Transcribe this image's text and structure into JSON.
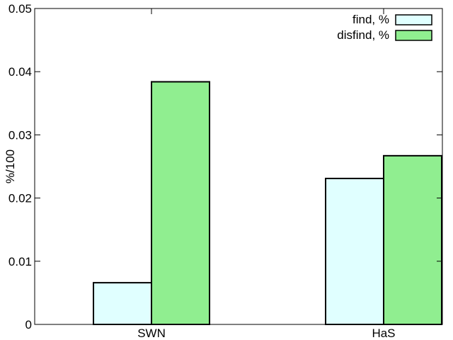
{
  "chart_data": {
    "type": "bar",
    "title": "",
    "xlabel": "",
    "ylabel": "%/100",
    "ylim": [
      0,
      0.05
    ],
    "yticks": [
      "0",
      "0.01",
      "0.02",
      "0.03",
      "0.04",
      "0.05"
    ],
    "categories": [
      "SWN",
      "HaS"
    ],
    "series": [
      {
        "name": "find, %",
        "values": [
          0.0066,
          0.0231
        ],
        "color": "#e0ffff"
      },
      {
        "name": "disfind, %",
        "values": [
          0.0384,
          0.0267
        ],
        "color": "#90ee90"
      }
    ],
    "legend_position": "top-right",
    "grid": false
  }
}
